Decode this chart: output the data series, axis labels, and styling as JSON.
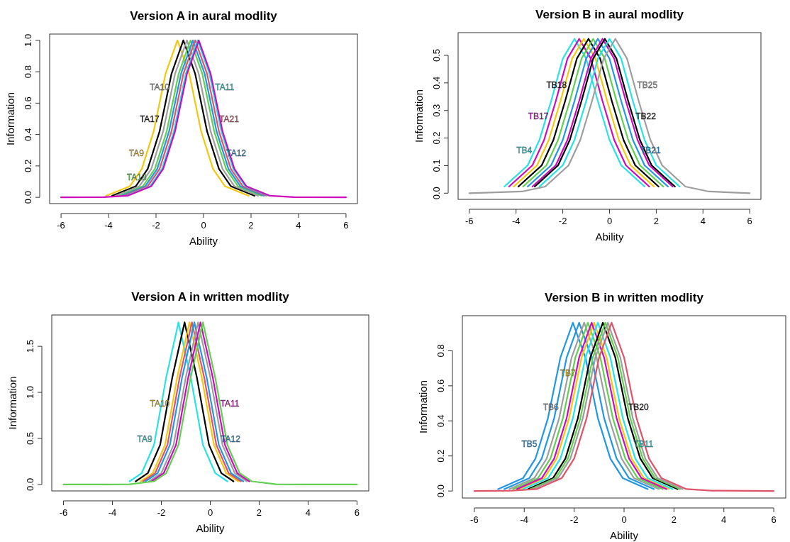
{
  "chart_data": [
    {
      "type": "line",
      "title": "Version A in aural modlity",
      "xlabel": "Ability",
      "ylabel": "Information",
      "xlim": [
        -6.48,
        6.48
      ],
      "ylim": [
        -0.04,
        1.04
      ],
      "xticks": [
        -6,
        -4,
        -2,
        0,
        2,
        4,
        6
      ],
      "yticks": [
        {
          "value": 0,
          "label": "0.0"
        },
        {
          "value": 0.2,
          "label": "0.2"
        },
        {
          "value": 0.4,
          "label": "0.4"
        },
        {
          "value": 0.6,
          "label": "0.6"
        },
        {
          "value": 0.8,
          "label": "0.8"
        },
        {
          "value": 1,
          "label": "1.0"
        }
      ],
      "series": [
        {
          "name": "TA9",
          "color": "#f5c710",
          "x": [
            -4.1,
            -3.1,
            -2.6,
            -2.1,
            -1.6,
            -1.1,
            -0.6,
            -0.1,
            0.4,
            0.9,
            1.9
          ],
          "values": [
            0.01,
            0.071,
            0.181,
            0.42,
            0.786,
            1,
            0.786,
            0.42,
            0.181,
            0.071,
            0.01
          ]
        },
        {
          "name": "TA17",
          "color": "#000000",
          "x": [
            -3.85,
            -2.85,
            -2.35,
            -1.85,
            -1.35,
            -0.85,
            -0.35,
            0.15,
            0.65,
            1.15,
            2.15
          ],
          "values": [
            0.01,
            0.071,
            0.181,
            0.42,
            0.786,
            1,
            0.786,
            0.42,
            0.181,
            0.071,
            0.01
          ]
        },
        {
          "name": "TA10",
          "color": "#9e9e9e",
          "x": [
            -3.7,
            -2.7,
            -2.2,
            -1.7,
            -1.2,
            -0.7,
            -0.2,
            0.3,
            0.8,
            1.3,
            2.3
          ],
          "values": [
            0.01,
            0.071,
            0.181,
            0.42,
            0.786,
            1,
            0.786,
            0.42,
            0.181,
            0.071,
            0.01
          ]
        },
        {
          "name": "TA18",
          "color": "#61d04f",
          "x": [
            -3.55,
            -2.55,
            -2.05,
            -1.55,
            -1.05,
            -0.55,
            -0.05,
            0.45,
            0.95,
            1.45,
            2.45
          ],
          "values": [
            0.01,
            0.071,
            0.181,
            0.42,
            0.786,
            1,
            0.786,
            0.42,
            0.181,
            0.071,
            0.01
          ]
        },
        {
          "name": "TA12",
          "color": "#2297e6",
          "x": [
            -3.45,
            -2.45,
            -1.95,
            -1.45,
            -0.95,
            -0.45,
            0.05,
            0.55,
            1.05,
            1.55,
            2.55
          ],
          "values": [
            0.01,
            0.071,
            0.181,
            0.42,
            0.786,
            1,
            0.786,
            0.42,
            0.181,
            0.071,
            0.01
          ]
        },
        {
          "name": "TA21",
          "color": "#df536b",
          "x": [
            -3.35,
            -2.35,
            -1.85,
            -1.35,
            -0.85,
            -0.35,
            0.15,
            0.65,
            1.15,
            1.65,
            2.65
          ],
          "values": [
            0.01,
            0.071,
            0.181,
            0.42,
            0.786,
            1,
            0.786,
            0.42,
            0.181,
            0.071,
            0.01
          ]
        },
        {
          "name": "TA11",
          "color": "#28e2e5",
          "x": [
            -3.25,
            -2.25,
            -1.75,
            -1.25,
            -0.75,
            -0.25,
            0.25,
            0.75,
            1.25,
            1.75,
            2.75
          ],
          "values": [
            0.01,
            0.071,
            0.181,
            0.42,
            0.786,
            1,
            0.786,
            0.42,
            0.181,
            0.071,
            0.01
          ]
        },
        {
          "color": "#cd0bbc",
          "x": [
            -6,
            -4.2,
            -3.2,
            -2.2,
            -1.7,
            -1.2,
            -0.7,
            -0.2,
            0.3,
            0.8,
            1.3,
            1.8,
            2.8,
            3.8,
            6
          ],
          "values": [
            0,
            0.001,
            0.01,
            0.071,
            0.181,
            0.42,
            0.786,
            1,
            0.786,
            0.42,
            0.181,
            0.071,
            0.01,
            0.001,
            0
          ]
        }
      ]
    },
    {
      "type": "line",
      "title": "Version B in aural modlity",
      "xlabel": "Ability",
      "ylabel": "Information",
      "xlim": [
        -6.48,
        6.48
      ],
      "ylim": [
        -0.0224,
        0.5824
      ],
      "xticks": [
        -6,
        -4,
        -2,
        0,
        2,
        4,
        6
      ],
      "yticks": [
        {
          "value": 0,
          "label": "0.0"
        },
        {
          "value": 0.1,
          "label": "0.1"
        },
        {
          "value": 0.2,
          "label": "0.2"
        },
        {
          "value": 0.3,
          "label": "0.3"
        },
        {
          "value": 0.4,
          "label": "0.4"
        },
        {
          "value": 0.5,
          "label": "0.5"
        }
      ],
      "series": [
        {
          "name": "TB4",
          "color": "#28e2e5",
          "x": [
            -4.5,
            -3.5,
            -3,
            -2.5,
            -2,
            -1.5,
            -1,
            -0.5,
            0,
            0.5,
            1.5
          ],
          "values": [
            0.024,
            0.101,
            0.193,
            0.334,
            0.488,
            0.56,
            0.488,
            0.334,
            0.193,
            0.101,
            0.024
          ]
        },
        {
          "name": "TB17",
          "color": "#cd0bbc",
          "x": [
            -4.3,
            -3.3,
            -2.8,
            -2.3,
            -1.8,
            -1.3,
            -0.8,
            -0.3,
            0.2,
            0.7,
            1.7
          ],
          "values": [
            0.024,
            0.101,
            0.193,
            0.334,
            0.488,
            0.56,
            0.488,
            0.334,
            0.193,
            0.101,
            0.024
          ]
        },
        {
          "color": "#f5c710",
          "x": [
            -4.1,
            -3.1,
            -2.6,
            -2.1,
            -1.6,
            -1.1,
            -0.6,
            -0.1,
            0.4,
            0.9,
            1.9
          ],
          "values": [
            0.024,
            0.101,
            0.193,
            0.334,
            0.488,
            0.56,
            0.488,
            0.334,
            0.193,
            0.101,
            0.024
          ]
        },
        {
          "name": "TB18",
          "color": "#000000",
          "x": [
            -3.9,
            -2.9,
            -2.4,
            -1.9,
            -1.4,
            -0.9,
            -0.4,
            0.1,
            0.6,
            1.1,
            2.1
          ],
          "values": [
            0.024,
            0.101,
            0.193,
            0.334,
            0.488,
            0.56,
            0.488,
            0.334,
            0.193,
            0.101,
            0.024
          ]
        },
        {
          "color": "#61d04f",
          "x": [
            -3.7,
            -2.7,
            -2.2,
            -1.7,
            -1.2,
            -0.7,
            -0.2,
            0.3,
            0.8,
            1.3,
            2.3
          ],
          "values": [
            0.024,
            0.101,
            0.193,
            0.334,
            0.488,
            0.56,
            0.488,
            0.334,
            0.193,
            0.101,
            0.024
          ]
        },
        {
          "name": "TB21",
          "color": "#2297e6",
          "x": [
            -3.5,
            -2.5,
            -2,
            -1.5,
            -1,
            -0.5,
            0,
            0.5,
            1,
            1.5,
            2.5
          ],
          "values": [
            0.024,
            0.101,
            0.193,
            0.334,
            0.488,
            0.56,
            0.488,
            0.334,
            0.193,
            0.101,
            0.024
          ]
        },
        {
          "color": "#cd0bbc",
          "x": [
            -3.3,
            -2.3,
            -1.8,
            -1.3,
            -0.8,
            -0.3,
            0.2,
            0.7,
            1.2,
            1.7,
            2.7
          ],
          "values": [
            0.024,
            0.101,
            0.193,
            0.334,
            0.488,
            0.56,
            0.488,
            0.334,
            0.193,
            0.101,
            0.024
          ]
        },
        {
          "name": "TB22",
          "color": "#000000",
          "x": [
            -3.2,
            -2.2,
            -1.7,
            -1.2,
            -0.7,
            -0.2,
            0.3,
            0.8,
            1.3,
            1.8,
            2.8
          ],
          "values": [
            0.024,
            0.101,
            0.193,
            0.334,
            0.488,
            0.56,
            0.488,
            0.334,
            0.193,
            0.101,
            0.024
          ]
        },
        {
          "color": "#28e2e5",
          "x": [
            -3,
            -2,
            -1.5,
            -1,
            -0.5,
            0,
            0.5,
            1,
            1.5,
            2,
            3
          ],
          "values": [
            0.024,
            0.101,
            0.193,
            0.334,
            0.488,
            0.56,
            0.488,
            0.334,
            0.193,
            0.101,
            0.024
          ]
        },
        {
          "name": "TB25",
          "color": "#9e9e9e",
          "x": [
            -6,
            -3.75,
            -2.75,
            -1.75,
            -1.25,
            -0.75,
            -0.25,
            0.25,
            0.75,
            1.25,
            1.75,
            2.25,
            3.25,
            4.25,
            6
          ],
          "values": [
            0,
            0.006,
            0.024,
            0.101,
            0.193,
            0.334,
            0.488,
            0.56,
            0.488,
            0.334,
            0.193,
            0.101,
            0.024,
            0.006,
            0
          ]
        }
      ]
    },
    {
      "type": "line",
      "title": "Version A in written modlity",
      "xlabel": "Ability",
      "ylabel": "Information",
      "xlim": [
        -6.48,
        6.48
      ],
      "ylim": [
        -0.07,
        1.84
      ],
      "xticks": [
        -6,
        -4,
        -2,
        0,
        2,
        4,
        6
      ],
      "yticks": [
        {
          "value": 0,
          "label": "0.0"
        },
        {
          "value": 0.5,
          "label": "0.5"
        },
        {
          "value": 1,
          "label": "1.0"
        },
        {
          "value": 1.5,
          "label": "1.5"
        }
      ],
      "series": [
        {
          "name": "TA9",
          "color": "#28e2e5",
          "x": [
            -3.3,
            -2.8,
            -2.3,
            -1.8,
            -1.3,
            -0.8,
            -0.3,
            0.2,
            0.7
          ],
          "values": [
            0.034,
            0.124,
            0.43,
            1.165,
            1.76,
            1.165,
            0.43,
            0.124,
            0.034
          ]
        },
        {
          "color": "#000000",
          "x": [
            -3.05,
            -2.55,
            -2.05,
            -1.55,
            -1.05,
            -0.55,
            -0.05,
            0.45,
            0.95
          ],
          "values": [
            0.034,
            0.124,
            0.43,
            1.165,
            1.76,
            1.165,
            0.43,
            0.124,
            0.034
          ]
        },
        {
          "name": "TA10",
          "color": "#f5c710",
          "x": [
            -2.85,
            -2.35,
            -1.85,
            -1.35,
            -0.85,
            -0.35,
            0.15,
            0.65,
            1.15
          ],
          "values": [
            0.034,
            0.124,
            0.43,
            1.165,
            1.76,
            1.165,
            0.43,
            0.124,
            0.034
          ]
        },
        {
          "color": "#df536b",
          "x": [
            -2.75,
            -2.25,
            -1.75,
            -1.25,
            -0.75,
            -0.25,
            0.25,
            0.75,
            1.25
          ],
          "values": [
            0.034,
            0.124,
            0.43,
            1.165,
            1.76,
            1.165,
            0.43,
            0.124,
            0.034
          ]
        },
        {
          "name": "TA12",
          "color": "#2297e6",
          "x": [
            -2.65,
            -2.15,
            -1.65,
            -1.15,
            -0.65,
            -0.15,
            0.35,
            0.85,
            1.35
          ],
          "values": [
            0.034,
            0.124,
            0.43,
            1.165,
            1.76,
            1.165,
            0.43,
            0.124,
            0.034
          ]
        },
        {
          "color": "#9e9e9e",
          "x": [
            -2.5,
            -2,
            -1.5,
            -1,
            -0.5,
            0,
            0.5,
            1,
            1.5
          ],
          "values": [
            0.034,
            0.124,
            0.43,
            1.165,
            1.76,
            1.165,
            0.43,
            0.124,
            0.034
          ]
        },
        {
          "name": "TA11",
          "color": "#cd0bbc",
          "x": [
            -2.4,
            -1.9,
            -1.4,
            -0.9,
            -0.4,
            0.1,
            0.6,
            1.1,
            1.6
          ],
          "values": [
            0.034,
            0.124,
            0.43,
            1.165,
            1.76,
            1.165,
            0.43,
            0.124,
            0.034
          ]
        },
        {
          "color": "#61d04f",
          "x": [
            -6,
            -4.3,
            -3.3,
            -2.3,
            -1.8,
            -1.3,
            -0.8,
            -0.3,
            0.2,
            0.7,
            1.2,
            1.7,
            2.7,
            3.7,
            6
          ],
          "values": [
            0,
            0,
            0.002,
            0.034,
            0.124,
            0.43,
            1.165,
            1.76,
            1.165,
            0.43,
            0.124,
            0.034,
            0.002,
            0,
            0
          ]
        }
      ]
    },
    {
      "type": "line",
      "title": "Version B in written modlity",
      "xlabel": "Ability",
      "ylabel": "Information",
      "xlim": [
        -6.48,
        6.48
      ],
      "ylim": [
        -0.04,
        1.0
      ],
      "xticks": [
        -6,
        -4,
        -2,
        0,
        2,
        4,
        6
      ],
      "yticks": [
        {
          "value": 0,
          "label": "0.0"
        },
        {
          "value": 0.2,
          "label": "0.2"
        },
        {
          "value": 0.4,
          "label": "0.4"
        },
        {
          "value": 0.6,
          "label": "0.6"
        },
        {
          "value": 0.8,
          "label": "0.8"
        }
      ],
      "series": [
        {
          "name": "TB5",
          "color": "#2297e6",
          "x": [
            -5.05,
            -4.05,
            -3.55,
            -3.05,
            -2.55,
            -2.05,
            -1.55,
            -1.05,
            -0.55,
            -0.05,
            0.95
          ],
          "values": [
            0.011,
            0.073,
            0.185,
            0.416,
            0.762,
            0.96,
            0.762,
            0.416,
            0.185,
            0.073,
            0.011
          ]
        },
        {
          "color": "#2297e6",
          "x": [
            -4.8,
            -3.8,
            -3.3,
            -2.8,
            -2.3,
            -1.8,
            -1.3,
            -0.8,
            -0.3,
            0.2,
            1.2
          ],
          "values": [
            0.011,
            0.073,
            0.185,
            0.416,
            0.762,
            0.96,
            0.762,
            0.416,
            0.185,
            0.073,
            0.011
          ]
        },
        {
          "name": "TB6",
          "color": "#9e9e9e",
          "x": [
            -4.6,
            -3.6,
            -3.1,
            -2.6,
            -2.1,
            -1.6,
            -1.1,
            -0.6,
            -0.1,
            0.4,
            1.4
          ],
          "values": [
            0.011,
            0.073,
            0.185,
            0.416,
            0.762,
            0.96,
            0.762,
            0.416,
            0.185,
            0.073,
            0.011
          ]
        },
        {
          "color": "#61d04f",
          "x": [
            -4.45,
            -3.45,
            -2.95,
            -2.45,
            -1.95,
            -1.45,
            -0.95,
            -0.45,
            0.05,
            0.55,
            1.55
          ],
          "values": [
            0.011,
            0.073,
            0.185,
            0.416,
            0.762,
            0.96,
            0.762,
            0.416,
            0.185,
            0.073,
            0.011
          ]
        },
        {
          "name": "TB7",
          "color": "#f5c710",
          "x": [
            -4.2,
            -3.2,
            -2.7,
            -2.2,
            -1.7,
            -1.2,
            -0.7,
            -0.2,
            0.3,
            0.8,
            1.8
          ],
          "values": [
            0.011,
            0.073,
            0.185,
            0.416,
            0.762,
            0.96,
            0.762,
            0.416,
            0.185,
            0.073,
            0.011
          ]
        },
        {
          "color": "#cd0bbc",
          "x": [
            -4.3,
            -3.3,
            -2.8,
            -2.3,
            -1.8,
            -1.3,
            -0.8,
            -0.3,
            0.2,
            0.7,
            1.7
          ],
          "values": [
            0.011,
            0.073,
            0.185,
            0.416,
            0.762,
            0.96,
            0.762,
            0.416,
            0.185,
            0.073,
            0.011
          ]
        },
        {
          "name": "TB11",
          "color": "#28e2e5",
          "x": [
            -4.05,
            -3.05,
            -2.55,
            -2.05,
            -1.55,
            -1.05,
            -0.55,
            -0.05,
            0.45,
            0.95,
            1.95
          ],
          "values": [
            0.011,
            0.073,
            0.185,
            0.416,
            0.762,
            0.96,
            0.762,
            0.416,
            0.185,
            0.073,
            0.011
          ]
        },
        {
          "name": "TB20",
          "color": "#000000",
          "x": [
            -3.85,
            -2.85,
            -2.35,
            -1.85,
            -1.35,
            -0.85,
            -0.35,
            0.15,
            0.65,
            1.15,
            2.15
          ],
          "values": [
            0.011,
            0.073,
            0.185,
            0.416,
            0.762,
            0.96,
            0.762,
            0.416,
            0.185,
            0.073,
            0.011
          ]
        },
        {
          "color": "#61d04f",
          "x": [
            -3.75,
            -2.75,
            -2.25,
            -1.75,
            -1.25,
            -0.75,
            -0.25,
            0.25,
            0.75,
            1.25,
            2.25
          ],
          "values": [
            0.011,
            0.073,
            0.185,
            0.416,
            0.762,
            0.96,
            0.762,
            0.416,
            0.185,
            0.073,
            0.011
          ]
        },
        {
          "color": "#9e9e9e",
          "x": [
            -3.65,
            -2.65,
            -2.15,
            -1.65,
            -1.15,
            -0.65,
            -0.15,
            0.35,
            0.85,
            1.35,
            2.35
          ],
          "values": [
            0.011,
            0.073,
            0.185,
            0.416,
            0.762,
            0.96,
            0.762,
            0.416,
            0.185,
            0.073,
            0.011
          ]
        },
        {
          "color": "#df536b",
          "x": [
            -6,
            -4.5,
            -3.5,
            -2.5,
            -2,
            -1.5,
            -1,
            -0.5,
            0,
            0.5,
            1,
            1.5,
            2.5,
            3.5,
            6
          ],
          "values": [
            0,
            0.002,
            0.011,
            0.073,
            0.185,
            0.416,
            0.762,
            0.96,
            0.762,
            0.416,
            0.185,
            0.073,
            0.011,
            0.002,
            0
          ]
        }
      ]
    }
  ]
}
